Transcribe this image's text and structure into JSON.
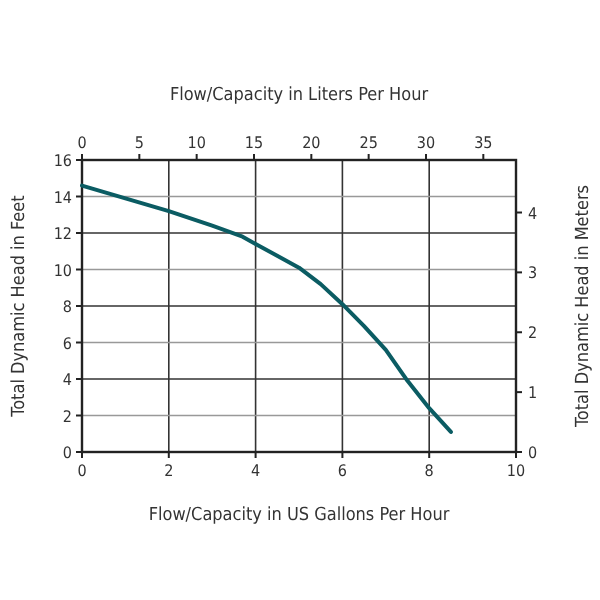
{
  "chart_data": {
    "type": "line",
    "xlabel": "Flow/Capacity in US Gallons Per Hour",
    "x2label": "Flow/Capacity in Liters Per Hour",
    "ylabel": "Total Dynamic Head in Feet",
    "y2label": "Total Dynamic Head in Meters",
    "xlim": [
      0,
      10
    ],
    "xticks": [
      0,
      2,
      4,
      6,
      8,
      10
    ],
    "ylim": [
      0,
      16
    ],
    "yticks": [
      0,
      2,
      4,
      6,
      8,
      10,
      12,
      14,
      16
    ],
    "x2lim": [
      0,
      37.85
    ],
    "x2ticks": [
      0,
      5,
      10,
      15,
      20,
      25,
      30,
      35
    ],
    "y2lim": [
      0,
      4.877
    ],
    "y2ticks": [
      0,
      1,
      2,
      3,
      4
    ],
    "grid": true,
    "marker": "none",
    "line_style": "solid",
    "series": [
      {
        "color": "#0b5c63",
        "x": [
          0,
          1,
          2,
          3,
          3.7,
          4,
          5,
          5.5,
          6,
          6.5,
          7,
          7.5,
          8,
          8.5
        ],
        "values": [
          14.6,
          13.9,
          13.2,
          12.4,
          11.8,
          11.4,
          10.1,
          9.2,
          8.1,
          6.9,
          5.6,
          3.9,
          2.4,
          1.1
        ]
      }
    ]
  }
}
